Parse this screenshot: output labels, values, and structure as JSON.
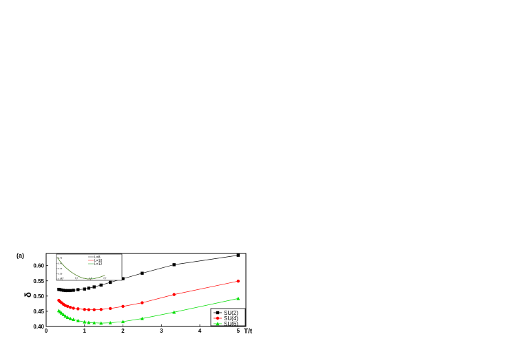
{
  "chart_data": {
    "type": "line",
    "panel_label": "(a)",
    "xlabel": "T/t",
    "ylabel": "δ",
    "xlim": [
      0,
      5.2
    ],
    "ylim": [
      0.4,
      0.64
    ],
    "xticks": [
      0,
      1,
      2,
      3,
      4,
      5
    ],
    "yticks": [
      0.4,
      0.45,
      0.5,
      0.55,
      0.6
    ],
    "ytick_labels": [
      "0.40",
      "0.45",
      "0.50",
      "0.55",
      "0.60"
    ],
    "legend_position": "bottom-right",
    "series": [
      {
        "name": "SU(2)",
        "color": "#000000",
        "marker": "square",
        "x": [
          0.33,
          0.36,
          0.4,
          0.45,
          0.5,
          0.56,
          0.63,
          0.71,
          0.83,
          1.0,
          1.11,
          1.25,
          1.43,
          1.67,
          2.0,
          2.5,
          3.33,
          5.0
        ],
        "y": [
          0.522,
          0.521,
          0.52,
          0.519,
          0.518,
          0.518,
          0.518,
          0.519,
          0.521,
          0.523,
          0.526,
          0.53,
          0.536,
          0.545,
          0.557,
          0.575,
          0.603,
          0.634
        ]
      },
      {
        "name": "SU(4)",
        "color": "#ff0000",
        "marker": "circle",
        "x": [
          0.33,
          0.36,
          0.4,
          0.45,
          0.5,
          0.56,
          0.63,
          0.71,
          0.83,
          1.0,
          1.11,
          1.25,
          1.43,
          1.67,
          2.0,
          2.5,
          3.33,
          5.0
        ],
        "y": [
          0.486,
          0.482,
          0.478,
          0.473,
          0.469,
          0.466,
          0.463,
          0.46,
          0.458,
          0.456,
          0.455,
          0.455,
          0.456,
          0.459,
          0.466,
          0.478,
          0.505,
          0.549
        ]
      },
      {
        "name": "SU(6)",
        "color": "#00dd00",
        "marker": "triangle",
        "x": [
          0.33,
          0.36,
          0.4,
          0.45,
          0.5,
          0.56,
          0.63,
          0.71,
          0.83,
          1.0,
          1.11,
          1.25,
          1.43,
          1.67,
          2.0,
          2.5,
          3.33,
          5.0
        ],
        "y": [
          0.452,
          0.448,
          0.444,
          0.439,
          0.434,
          0.43,
          0.426,
          0.423,
          0.419,
          0.415,
          0.413,
          0.412,
          0.411,
          0.412,
          0.416,
          0.426,
          0.447,
          0.492
        ]
      }
    ],
    "inset": {
      "xlim": [
        0.3,
        2.6
      ],
      "ylim": [
        0.365,
        0.465
      ],
      "xticks": [
        0.5,
        1.0,
        1.5,
        2.0
      ],
      "xtick_labels": [
        "0.5",
        "1.0",
        "1.5",
        "2.0"
      ],
      "yticks": [
        0.37,
        0.39,
        0.41,
        0.43,
        0.45
      ],
      "ytick_labels": [
        "0.37",
        "0.39",
        "0.41",
        "0.43",
        "0.45"
      ],
      "series": [
        {
          "name": "L=8",
          "color": "#333333",
          "x": [
            0.33,
            0.45,
            0.6,
            0.8,
            1.0,
            1.2,
            1.4,
            1.6,
            1.8,
            2.0
          ],
          "y": [
            0.452,
            0.434,
            0.416,
            0.398,
            0.384,
            0.374,
            0.37,
            0.371,
            0.376,
            0.384
          ]
        },
        {
          "name": "L=10",
          "color": "#ff3333",
          "x": [
            0.33,
            0.45,
            0.6,
            0.8,
            1.0,
            1.2,
            1.4,
            1.6,
            1.8,
            2.0
          ],
          "y": [
            0.452,
            0.434,
            0.416,
            0.398,
            0.384,
            0.374,
            0.37,
            0.371,
            0.376,
            0.384
          ]
        },
        {
          "name": "L=12",
          "color": "#33aa33",
          "x": [
            0.33,
            0.45,
            0.6,
            0.8,
            1.0,
            1.2,
            1.4,
            1.6,
            1.8,
            2.0
          ],
          "y": [
            0.452,
            0.434,
            0.416,
            0.398,
            0.384,
            0.374,
            0.37,
            0.371,
            0.376,
            0.384
          ]
        }
      ]
    }
  }
}
